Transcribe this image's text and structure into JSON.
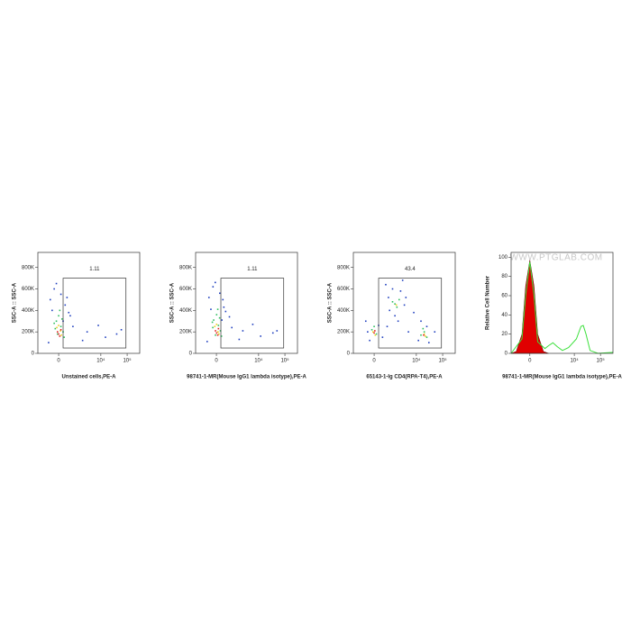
{
  "chart_data": [
    {
      "type": "scatter",
      "xscale": "biexponential",
      "xlabel": "Unstained cells,PE-A",
      "ylabel": "SSC-A :: SSC-A",
      "xlim": [
        -1500,
        300000
      ],
      "ylim": [
        0,
        940000
      ],
      "xticks": [
        0,
        {
          "value": 10000,
          "label": "10⁴"
        },
        {
          "value": 100000,
          "label": "10⁵"
        }
      ],
      "yticks": [
        0,
        {
          "value": 200000,
          "label": "200K"
        },
        {
          "value": 400000,
          "label": "400K"
        },
        {
          "value": 600000,
          "label": "600K"
        },
        {
          "value": 800000,
          "label": "800K"
        }
      ],
      "gate": {
        "label": "1.11",
        "x": [
          200,
          90000
        ],
        "y": [
          50000,
          700000
        ]
      },
      "series": [
        {
          "color": "#1f3fbf",
          "x": [
            -400,
            -200,
            300,
            500,
            -100,
            200,
            800,
            3000,
            15000,
            40000,
            -300,
            100,
            600,
            2000,
            60000,
            -500,
            400,
            8000
          ],
          "y": [
            500000,
            600000,
            450000,
            380000,
            650000,
            300000,
            250000,
            200000,
            150000,
            180000,
            400000,
            550000,
            350000,
            120000,
            220000,
            100000,
            520000,
            260000
          ]
        },
        {
          "color": "#2fbf5f",
          "x": [
            -100,
            100,
            0,
            200,
            -200,
            50,
            -50,
            150,
            -150,
            250
          ],
          "y": [
            300000,
            250000,
            350000,
            200000,
            280000,
            400000,
            180000,
            320000,
            230000,
            150000
          ]
        },
        {
          "color": "#e8d020",
          "x": [
            -80,
            80,
            0,
            120
          ],
          "y": [
            240000,
            210000,
            260000,
            170000
          ]
        },
        {
          "color": "#e02020",
          "x": [
            0,
            -50,
            50,
            100
          ],
          "y": [
            180000,
            200000,
            160000,
            220000
          ]
        }
      ]
    },
    {
      "type": "scatter",
      "xscale": "biexponential",
      "xlabel": "98741-1-MR(Mouse IgG1 lambda isotype),PE-A",
      "ylabel": "SSC-A :: SSC-A",
      "xlim": [
        -1500,
        300000
      ],
      "ylim": [
        0,
        940000
      ],
      "xticks": [
        0,
        {
          "value": 10000,
          "label": "10⁴"
        },
        {
          "value": 100000,
          "label": "10⁵"
        }
      ],
      "yticks": [
        0,
        {
          "value": 200000,
          "label": "200K"
        },
        {
          "value": 400000,
          "label": "400K"
        },
        {
          "value": 600000,
          "label": "600K"
        },
        {
          "value": 800000,
          "label": "800K"
        }
      ],
      "gate": {
        "label": "1.11",
        "x": [
          200,
          90000
        ],
        "y": [
          50000,
          700000
        ]
      },
      "series": [
        {
          "color": "#1f3fbf",
          "x": [
            -350,
            -150,
            350,
            450,
            -50,
            250,
            900,
            2500,
            12000,
            35000,
            -250,
            150,
            700,
            1800,
            50000,
            -450,
            300,
            6000
          ],
          "y": [
            520000,
            620000,
            430000,
            390000,
            660000,
            310000,
            240000,
            210000,
            160000,
            190000,
            410000,
            560000,
            340000,
            130000,
            210000,
            110000,
            500000,
            270000
          ]
        },
        {
          "color": "#2fbf5f",
          "x": [
            -120,
            90,
            10,
            180,
            -180,
            60,
            -40,
            140,
            -160,
            230
          ],
          "y": [
            310000,
            260000,
            360000,
            210000,
            290000,
            410000,
            170000,
            330000,
            240000,
            160000
          ]
        },
        {
          "color": "#e8d020",
          "x": [
            -70,
            70,
            10,
            110
          ],
          "y": [
            250000,
            200000,
            270000,
            180000
          ]
        },
        {
          "color": "#e02020",
          "x": [
            10,
            -40,
            60,
            90
          ],
          "y": [
            190000,
            210000,
            170000,
            230000
          ]
        }
      ]
    },
    {
      "type": "scatter",
      "xscale": "biexponential",
      "xlabel": "65143-1-Ig CD4(RPA-T4),PE-A",
      "ylabel": "SSC-A :: SSC-A",
      "xlim": [
        -1500,
        300000
      ],
      "ylim": [
        0,
        940000
      ],
      "xticks": [
        0,
        {
          "value": 10000,
          "label": "10⁴"
        },
        {
          "value": 100000,
          "label": "10⁵"
        }
      ],
      "yticks": [
        0,
        {
          "value": 200000,
          "label": "200K"
        },
        {
          "value": 400000,
          "label": "400K"
        },
        {
          "value": 600000,
          "label": "600K"
        },
        {
          "value": 800000,
          "label": "800K"
        }
      ],
      "gate": {
        "label": "43.4",
        "x": [
          200,
          90000
        ],
        "y": [
          50000,
          700000
        ]
      },
      "series": [
        {
          "color": "#1f3fbf",
          "x": [
            -400,
            -200,
            200,
            400,
            -300,
            800,
            1200,
            2500,
            3500,
            900,
            1500,
            4000,
            2000,
            600,
            12000,
            25000,
            30000,
            15000,
            8000,
            5000,
            50000,
            700,
            3000
          ],
          "y": [
            300000,
            120000,
            260000,
            150000,
            200000,
            520000,
            600000,
            580000,
            450000,
            400000,
            350000,
            520000,
            300000,
            640000,
            120000,
            250000,
            100000,
            300000,
            380000,
            200000,
            200000,
            250000,
            680000
          ]
        },
        {
          "color": "#2fbf5f",
          "x": [
            -100,
            100,
            0,
            1200,
            1800,
            2200,
            1500,
            15000,
            20000,
            25000,
            18000
          ],
          "y": [
            220000,
            180000,
            250000,
            480000,
            430000,
            500000,
            460000,
            170000,
            200000,
            150000,
            230000
          ]
        },
        {
          "color": "#e8d020",
          "x": [
            -50,
            50,
            1700,
            20000,
            22000
          ],
          "y": [
            200000,
            170000,
            450000,
            180000,
            160000
          ]
        },
        {
          "color": "#e02020",
          "x": [
            0,
            30,
            19000
          ],
          "y": [
            190000,
            210000,
            170000
          ]
        }
      ]
    },
    {
      "type": "histogram",
      "xscale": "biexponential",
      "xlabel": "98741-1-MR(Mouse IgG1 lambda isotype),PE-A",
      "ylabel": "Relative Cell Number",
      "watermark": "WWW.PTGLAB.COM",
      "xlim": [
        -1000,
        300000
      ],
      "ylim": [
        0,
        105
      ],
      "xticks": [
        0,
        {
          "value": 10000,
          "label": "10⁴"
        },
        {
          "value": 100000,
          "label": "10⁵"
        }
      ],
      "yticks": [
        0,
        20,
        40,
        60,
        80,
        100
      ],
      "series": [
        {
          "color": "#e00000",
          "fill": true,
          "x": [
            -1000,
            -600,
            -300,
            -150,
            0,
            150,
            300,
            600,
            1000
          ],
          "values": [
            0,
            2,
            20,
            70,
            97,
            70,
            20,
            2,
            0
          ]
        },
        {
          "color": "#3ce03c",
          "fill": false,
          "x": [
            -1000,
            -300,
            -150,
            0,
            150,
            300,
            700,
            1000,
            1500,
            2200,
            3500,
            6000,
            12000,
            18000,
            22000,
            28000,
            40000,
            80000,
            300000
          ],
          "values": [
            0,
            15,
            60,
            95,
            60,
            12,
            5,
            8,
            11,
            7,
            3,
            6,
            15,
            28,
            29,
            20,
            3,
            0,
            1
          ]
        }
      ]
    }
  ]
}
